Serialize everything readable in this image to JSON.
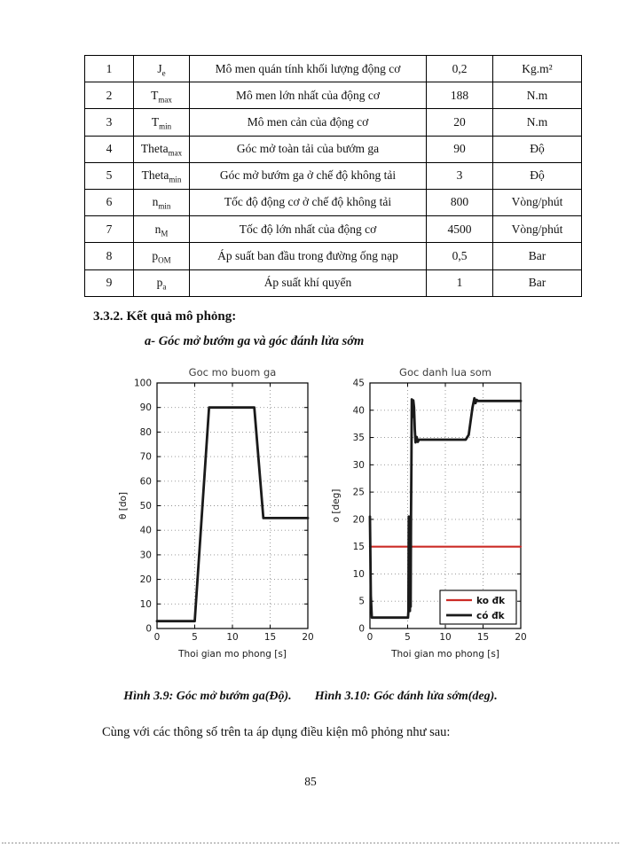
{
  "page": {
    "section_heading": "3.3.2. Kết quả mô phỏng:",
    "sub_heading": "a-  Góc mở bướm ga và góc đánh lửa sớm",
    "caption_left": "Hình 3.9: Góc mở bướm ga(Độ).",
    "caption_right": "Hình 3.10: Góc đánh lửa sớm(deg).",
    "body_text": "Cùng với các thông số trên ta áp dụng điều kiện mô phỏng như sau:",
    "page_number": "85"
  },
  "table": {
    "rows": [
      {
        "no": "1",
        "symbol": {
          "base": "J",
          "sub": "e"
        },
        "description": "Mô men quán tính khối lượng động cơ",
        "value": "0,2",
        "unit": "Kg.m²"
      },
      {
        "no": "2",
        "symbol": {
          "base": "T",
          "sub": "max"
        },
        "description": "Mô men lớn nhất của động cơ",
        "value": "188",
        "unit": "N.m"
      },
      {
        "no": "3",
        "symbol": {
          "base": "T",
          "sub": "min"
        },
        "description": "Mô men cản của động cơ",
        "value": "20",
        "unit": "N.m"
      },
      {
        "no": "4",
        "symbol": {
          "base": "Theta",
          "sub": "max"
        },
        "description": "Góc mở toàn tải của bướm ga",
        "value": "90",
        "unit": "Độ"
      },
      {
        "no": "5",
        "symbol": {
          "base": "Theta",
          "sub": "min"
        },
        "description": "Góc mở bướm ga ở chế độ không tải",
        "value": "3",
        "unit": "Độ"
      },
      {
        "no": "6",
        "symbol": {
          "base": "n",
          "sub": "min"
        },
        "description": "Tốc độ động cơ ở chế độ không tải",
        "value": "800",
        "unit": "Vòng/phút"
      },
      {
        "no": "7",
        "symbol": {
          "base": "n",
          "sub": "M"
        },
        "description": "Tốc độ lớn nhất của động cơ",
        "value": "4500",
        "unit": "Vòng/phút"
      },
      {
        "no": "8",
        "symbol": {
          "base": "p",
          "sub": "OM"
        },
        "description": "Áp suất ban đầu trong đường ống nạp",
        "value": "0,5",
        "unit": "Bar"
      },
      {
        "no": "9",
        "symbol": {
          "base": "p",
          "sub": "a"
        },
        "description": "Áp suất khí quyển",
        "value": "1",
        "unit": "Bar"
      }
    ]
  },
  "chart_data": [
    {
      "type": "line",
      "title": "Goc mo buom ga",
      "xlabel": "Thoi gian mo phong [s]",
      "ylabel": "θ [do]",
      "xlim": [
        0,
        20
      ],
      "ylim": [
        0,
        100
      ],
      "xticks": [
        0,
        5,
        10,
        15,
        20
      ],
      "yticks": [
        0,
        10,
        20,
        30,
        40,
        50,
        60,
        70,
        80,
        90,
        100
      ],
      "grid": true,
      "series": [
        {
          "name": "Goc mo buom ga",
          "color": "#1a1a1a",
          "width": 2.8,
          "points": [
            [
              0,
              3
            ],
            [
              5,
              3
            ],
            [
              6.9,
              90
            ],
            [
              12.9,
              90
            ],
            [
              14.1,
              45
            ],
            [
              20,
              45
            ]
          ]
        }
      ]
    },
    {
      "type": "line",
      "title": "Goc danh lua som",
      "xlabel": "Thoi gian mo phong [s]",
      "ylabel": "o [deg]",
      "xlim": [
        0,
        20
      ],
      "ylim": [
        0,
        45
      ],
      "xticks": [
        0,
        5,
        10,
        15,
        20
      ],
      "yticks": [
        0,
        5,
        10,
        15,
        20,
        25,
        30,
        35,
        40,
        45
      ],
      "grid": true,
      "legend": {
        "position": "bottom-right",
        "items": [
          {
            "label": "ko đk",
            "color": "#cc2b26",
            "width": 2.2
          },
          {
            "label": "có đk",
            "color": "#1a1a1a",
            "width": 2.8
          }
        ]
      },
      "series": [
        {
          "name": "ko đk",
          "color": "#cc2b26",
          "width": 2.2,
          "points": [
            [
              0,
              15
            ],
            [
              20,
              15
            ]
          ]
        },
        {
          "name": "có đk",
          "color": "#1a1a1a",
          "width": 2.8,
          "points": [
            [
              0,
              20.5
            ],
            [
              0.12,
              6
            ],
            [
              0.25,
              2
            ],
            [
              5.05,
              2
            ],
            [
              5.1,
              3.2
            ],
            [
              5.15,
              20.5
            ],
            [
              5.2,
              3.5
            ],
            [
              5.25,
              20
            ],
            [
              5.3,
              3.2
            ],
            [
              5.35,
              20.5
            ],
            [
              5.4,
              4
            ],
            [
              5.45,
              21
            ],
            [
              5.5,
              30
            ],
            [
              5.55,
              42
            ],
            [
              5.62,
              41
            ],
            [
              5.68,
              38.8
            ],
            [
              5.75,
              41.8
            ],
            [
              5.85,
              40.5
            ],
            [
              5.95,
              36.5
            ],
            [
              6.05,
              34.1
            ],
            [
              6.2,
              35.1
            ],
            [
              6.35,
              34.2
            ],
            [
              6.5,
              34.6
            ],
            [
              12.7,
              34.6
            ],
            [
              13.1,
              35.5
            ],
            [
              13.6,
              40.5
            ],
            [
              13.85,
              42.2
            ],
            [
              14.0,
              41.3
            ],
            [
              14.15,
              41.9
            ],
            [
              14.35,
              41.7
            ],
            [
              20,
              41.7
            ]
          ]
        }
      ]
    }
  ]
}
